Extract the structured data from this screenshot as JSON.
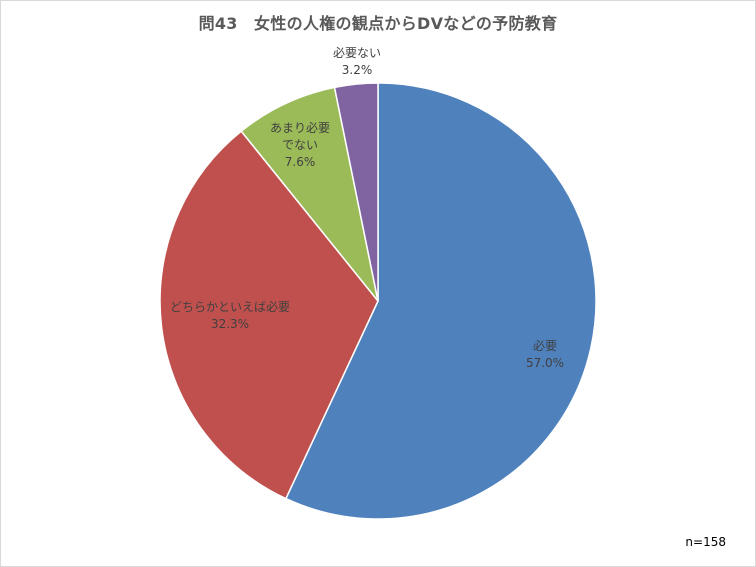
{
  "chart_data": {
    "type": "pie",
    "title": "問43　女性の人権の観点からDVなどの予防教育",
    "categories": [
      "必要",
      "どちらかといえば必要",
      "あまり必要でない",
      "必要ない"
    ],
    "values": [
      57.0,
      32.3,
      7.6,
      3.2
    ],
    "value_labels": [
      "57.0%",
      "32.3%",
      "7.6%",
      "3.2%"
    ],
    "colors": [
      "#4f81bd",
      "#c0504d",
      "#9bbb59",
      "#8064a2"
    ],
    "start": "12 o'clock",
    "direction": "clockwise",
    "legend": "none",
    "note": "n=158"
  }
}
